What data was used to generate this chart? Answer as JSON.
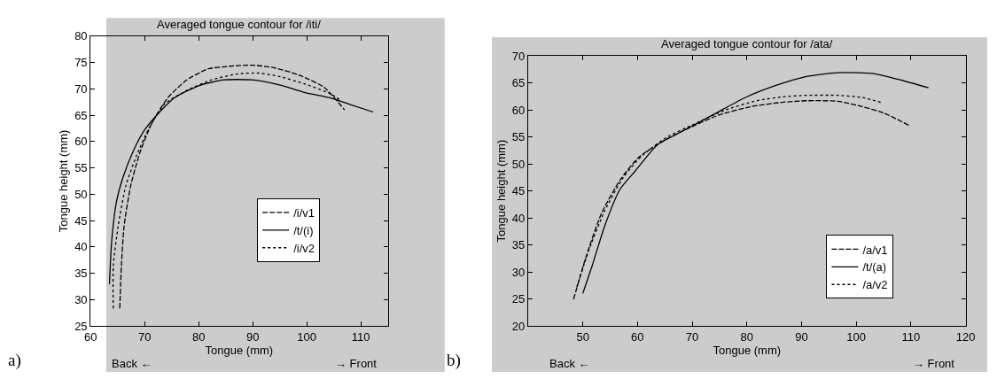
{
  "chart_data": [
    {
      "type": "line",
      "title": "Averaged tongue contour for /iti/",
      "xlabel": "Tongue (mm)",
      "ylabel": "Tongue height (mm)",
      "annotations": [
        "Back ←",
        "→ Front",
        "a)"
      ],
      "xlim": [
        60,
        115
      ],
      "xticks": [
        60,
        70,
        80,
        90,
        100,
        110
      ],
      "ylim": [
        25,
        80
      ],
      "yticks": [
        25,
        30,
        35,
        40,
        45,
        50,
        55,
        60,
        65,
        70,
        75,
        80
      ],
      "legend": "bottom right",
      "grid": false,
      "series": [
        {
          "name": "/i/v1",
          "color": "#000000",
          "line_style": "dashed",
          "x": [
            65.4,
            65.7,
            66.2,
            67.4,
            69.1,
            71.4,
            74.3,
            77.8,
            81.8,
            85.9,
            89.9,
            94,
            98.6,
            103.2,
            107
          ],
          "values": [
            28.3,
            36.4,
            43.9,
            51.5,
            57.8,
            63.6,
            68.3,
            71.7,
            73.8,
            74.3,
            74.5,
            74,
            72.6,
            70.3,
            66
          ]
        },
        {
          "name": "/t/(i)",
          "color": "#000000",
          "line_style": "solid",
          "x": [
            63.5,
            63.9,
            64.8,
            66,
            68,
            70,
            72.6,
            75.5,
            80,
            84.7,
            89.9,
            95.1,
            99.7,
            104.3,
            107.8,
            112.3
          ],
          "values": [
            32.9,
            41,
            48.6,
            53.2,
            58.4,
            62.2,
            65.4,
            68.3,
            70.6,
            71.7,
            71.7,
            70.7,
            69.3,
            68.3,
            67.1,
            65.6
          ]
        },
        {
          "name": "/i/v2",
          "color": "#000000",
          "line_style": "dotted",
          "x": [
            64.2,
            64.2,
            65.1,
            66.5,
            68.5,
            70.8,
            73.7,
            77.8,
            82.4,
            87,
            91.1,
            95.1,
            99.7,
            104.3,
            106.4
          ],
          "values": [
            28.3,
            36.4,
            43.9,
            51.5,
            57.3,
            62.5,
            67.1,
            69.7,
            71.7,
            72.8,
            73,
            72.3,
            70.9,
            69.1,
            67.7
          ]
        }
      ]
    },
    {
      "type": "line",
      "title": "Averaged tongue contour for /ata/",
      "xlabel": "Tongue (mm)",
      "ylabel": "Tongue height (mm)",
      "annotations": [
        "Back ←",
        "→ Front",
        "b)"
      ],
      "xlim": [
        40,
        120
      ],
      "xticks": [
        50,
        60,
        70,
        80,
        90,
        100,
        110,
        120
      ],
      "ylim": [
        20,
        70
      ],
      "yticks": [
        20,
        25,
        30,
        35,
        40,
        45,
        50,
        55,
        60,
        65,
        70
      ],
      "legend": "bottom right",
      "grid": false,
      "series": [
        {
          "name": "/a/v1",
          "color": "#000000",
          "line_style": "dashed",
          "x": [
            48.3,
            50.6,
            53.4,
            56.8,
            60.2,
            64.8,
            69.3,
            75,
            80.7,
            86.4,
            90.9,
            96.6,
            101.1,
            105.1,
            109.9
          ],
          "values": [
            24.9,
            32.8,
            40.8,
            47,
            51.2,
            54.3,
            56.6,
            59.1,
            60.6,
            61.4,
            61.7,
            61.6,
            60.6,
            59.4,
            57
          ]
        },
        {
          "name": "/t/(a)",
          "color": "#000000",
          "line_style": "solid",
          "x": [
            50,
            51.7,
            54,
            56.8,
            59.6,
            63.6,
            68.1,
            73.8,
            79.5,
            85.2,
            90.9,
            96.6,
            100,
            103.4,
            107.9,
            113.2
          ],
          "values": [
            26,
            31.1,
            38.5,
            45.3,
            48.7,
            53.5,
            56,
            59.1,
            62.2,
            64.5,
            66.2,
            66.9,
            66.9,
            66.7,
            65.6,
            64.1
          ]
        },
        {
          "name": "/a/v2",
          "color": "#000000",
          "line_style": "dotted",
          "x": [
            48.9,
            51.1,
            54,
            57.4,
            60.8,
            65.3,
            70.4,
            76.1,
            81.8,
            86.4,
            90.9,
            96.6,
            101.1,
            104.5
          ],
          "values": [
            27.2,
            34,
            41.3,
            47.5,
            51.5,
            54.9,
            57.4,
            60,
            61.7,
            62.4,
            62.7,
            62.7,
            62.3,
            61.4
          ]
        }
      ]
    }
  ]
}
